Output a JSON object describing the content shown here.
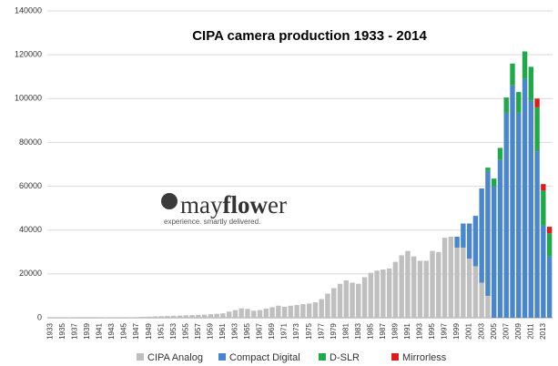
{
  "chart_data": {
    "type": "stacked-bar",
    "title": "CIPA  camera production 1933 - 2014",
    "categories": [
      "1933",
      null,
      "1935",
      null,
      "1937",
      null,
      "1939",
      null,
      "1941",
      null,
      "1943",
      null,
      "1945",
      null,
      "1947",
      null,
      "1949",
      null,
      "1951",
      null,
      "1953",
      null,
      "1955",
      null,
      "1957",
      null,
      "1959",
      null,
      "1961",
      null,
      "1963",
      null,
      "1965",
      null,
      "1967",
      null,
      "1969",
      null,
      "1971",
      null,
      "1973",
      null,
      "1975",
      null,
      "1977",
      null,
      "1979",
      null,
      "1981",
      null,
      "1983",
      null,
      "1985",
      null,
      "1987",
      null,
      "1989",
      null,
      "1991",
      null,
      "1993",
      null,
      "1995",
      null,
      "1997",
      null,
      "1999",
      null,
      "2001",
      null,
      "2003",
      null,
      "2005",
      null,
      "2007",
      null,
      "2009",
      null,
      "2011",
      null,
      "2013",
      null
    ],
    "series": [
      {
        "name": "CIPA Analog",
        "color": "#bfbfbf",
        "values": [
          100,
          150,
          150,
          200,
          250,
          300,
          300,
          300,
          250,
          200,
          150,
          100,
          100,
          200,
          300,
          400,
          500,
          600,
          700,
          800,
          900,
          1000,
          1100,
          1200,
          1300,
          1400,
          1600,
          1800,
          2000,
          2800,
          3500,
          4300,
          4000,
          3200,
          3500,
          4200,
          4800,
          5500,
          5000,
          5500,
          5800,
          6200,
          6500,
          7000,
          8500,
          11000,
          13500,
          15500,
          17000,
          16000,
          15500,
          18500,
          20500,
          21500,
          22000,
          22500,
          25500,
          28500,
          30500,
          28000,
          26000,
          26000,
          30500,
          30000,
          36500,
          37000,
          32000,
          32000,
          27000,
          23500,
          16000,
          10000,
          0,
          0,
          0,
          0,
          0,
          0,
          0,
          0,
          0,
          0
        ]
      },
      {
        "name": "Compact Digital",
        "color": "#4a86c8",
        "values": [
          0,
          0,
          0,
          0,
          0,
          0,
          0,
          0,
          0,
          0,
          0,
          0,
          0,
          0,
          0,
          0,
          0,
          0,
          0,
          0,
          0,
          0,
          0,
          0,
          0,
          0,
          0,
          0,
          0,
          0,
          0,
          0,
          0,
          0,
          0,
          0,
          0,
          0,
          0,
          0,
          0,
          0,
          0,
          0,
          0,
          0,
          0,
          0,
          0,
          0,
          0,
          0,
          0,
          0,
          0,
          0,
          0,
          0,
          0,
          0,
          0,
          0,
          0,
          0,
          0,
          0,
          5000,
          11000,
          16000,
          23000,
          43000,
          57000,
          60000,
          72000,
          93500,
          106000,
          93500,
          109000,
          99000,
          76000,
          42000,
          28000
        ]
      },
      {
        "name": "D-SLR",
        "color": "#22a84a",
        "values": [
          0,
          0,
          0,
          0,
          0,
          0,
          0,
          0,
          0,
          0,
          0,
          0,
          0,
          0,
          0,
          0,
          0,
          0,
          0,
          0,
          0,
          0,
          0,
          0,
          0,
          0,
          0,
          0,
          0,
          0,
          0,
          0,
          0,
          0,
          0,
          0,
          0,
          0,
          0,
          0,
          0,
          0,
          0,
          0,
          0,
          0,
          0,
          0,
          0,
          0,
          0,
          0,
          0,
          0,
          0,
          0,
          0,
          0,
          0,
          0,
          0,
          0,
          0,
          0,
          0,
          0,
          0,
          0,
          0,
          0,
          0,
          1500,
          3500,
          5500,
          7000,
          10000,
          9500,
          12500,
          15500,
          20000,
          16000,
          10500
        ]
      },
      {
        "name": "Mirrorless",
        "color": "#d42020",
        "values": [
          0,
          0,
          0,
          0,
          0,
          0,
          0,
          0,
          0,
          0,
          0,
          0,
          0,
          0,
          0,
          0,
          0,
          0,
          0,
          0,
          0,
          0,
          0,
          0,
          0,
          0,
          0,
          0,
          0,
          0,
          0,
          0,
          0,
          0,
          0,
          0,
          0,
          0,
          0,
          0,
          0,
          0,
          0,
          0,
          0,
          0,
          0,
          0,
          0,
          0,
          0,
          0,
          0,
          0,
          0,
          0,
          0,
          0,
          0,
          0,
          0,
          0,
          0,
          0,
          0,
          0,
          0,
          0,
          0,
          0,
          0,
          0,
          0,
          0,
          0,
          0,
          0,
          0,
          0,
          4000,
          3000,
          3000
        ]
      }
    ],
    "ylim": [
      0,
      140000
    ],
    "yticks": [
      0,
      20000,
      40000,
      60000,
      80000,
      100000,
      120000,
      140000
    ],
    "grid": true,
    "legend": "bottom",
    "logo": {
      "parts": [
        "may",
        "flow",
        "er"
      ],
      "tagline": "experience. smartly delivered."
    }
  }
}
